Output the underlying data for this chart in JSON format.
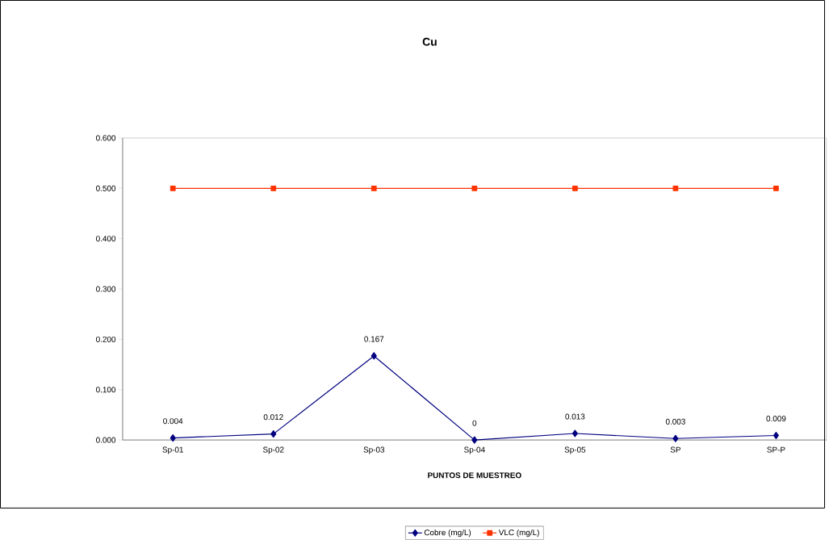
{
  "chart_data": {
    "type": "line",
    "title": "Cu",
    "xlabel": "PUNTOS DE MUESTREO",
    "categories": [
      "Sp-01",
      "Sp-02",
      "Sp-03",
      "Sp-04",
      "Sp-05",
      "SP",
      "SP-P"
    ],
    "series": [
      {
        "name": "Cobre (mg/L)",
        "color": "#000080",
        "marker": "diamond",
        "values": [
          0.004,
          0.012,
          0.167,
          0,
          0.013,
          0.003,
          0.009
        ],
        "value_labels": [
          "0.004",
          "0.012",
          "0.167",
          "0",
          "0.013",
          "0.003",
          "0.009"
        ]
      },
      {
        "name": "VLC (mg/L)",
        "color": "#ff3300",
        "marker": "square",
        "values": [
          0.5,
          0.5,
          0.5,
          0.5,
          0.5,
          0.5,
          0.5
        ]
      }
    ],
    "ylim": [
      0,
      0.6
    ],
    "yticks": [
      {
        "value": 0,
        "label": "0.000"
      },
      {
        "value": 0.1,
        "label": "0.100"
      },
      {
        "value": 0.2,
        "label": "0.200"
      },
      {
        "value": 0.3,
        "label": "0.300"
      },
      {
        "value": 0.4,
        "label": "0.400"
      },
      {
        "value": 0.5,
        "label": "0.500"
      },
      {
        "value": 0.6,
        "label": "0.600"
      }
    ],
    "grid": false,
    "legend": "bottom",
    "line_style": "solid"
  }
}
